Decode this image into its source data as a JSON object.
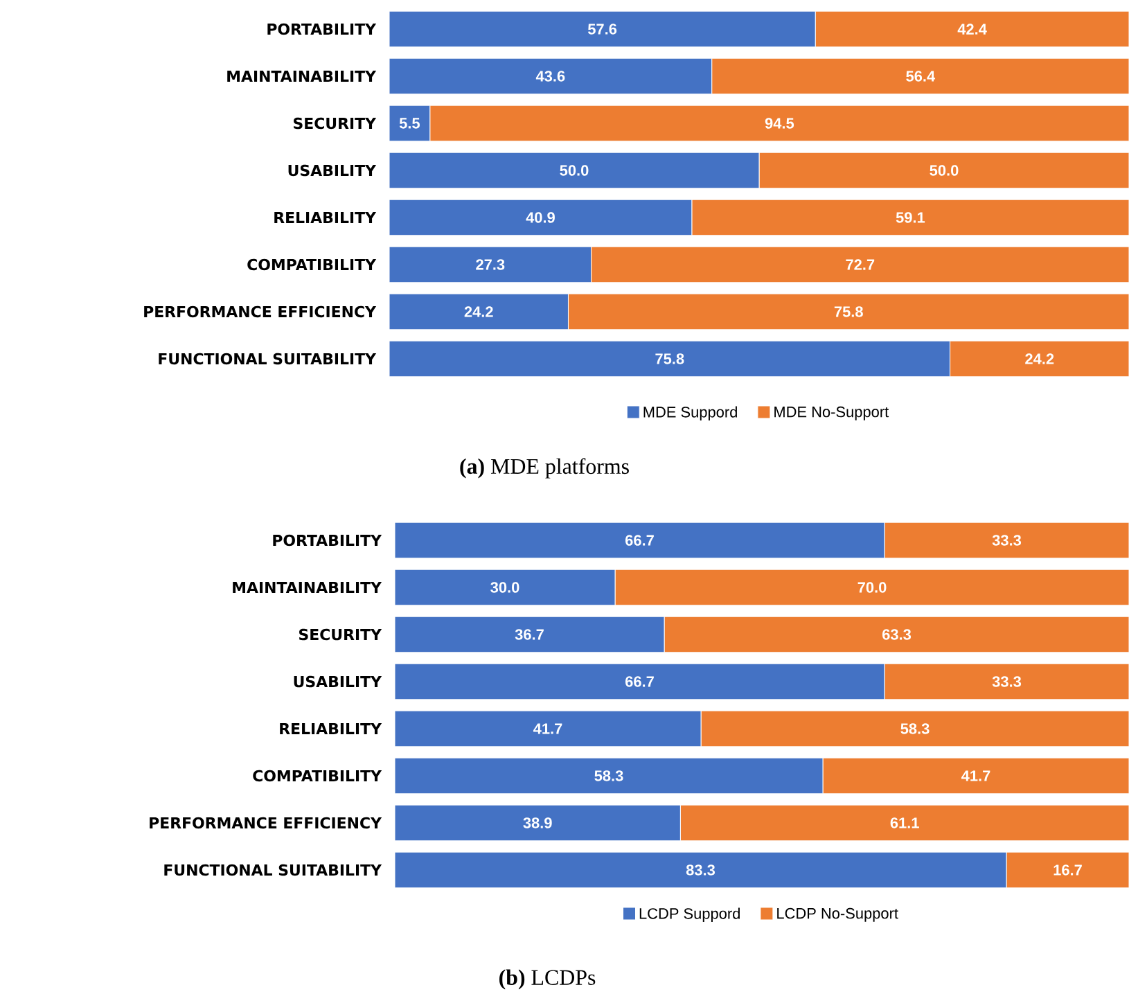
{
  "chart_data": [
    {
      "type": "bar",
      "orientation": "horizontal",
      "stacked": true,
      "title": "**(a)** MDE platforms",
      "categories": [
        "PORTABILITY",
        "MAINTAINABILITY",
        "SECURITY",
        "USABILITY",
        "RELIABILITY",
        "COMPATIBILITY",
        "PERFORMANCE EFFICIENCY",
        "FUNCTIONAL SUITABILITY"
      ],
      "series": [
        {
          "name": "MDE Suppord",
          "color": "#4472c4",
          "values": [
            57.6,
            43.6,
            5.5,
            50.0,
            40.9,
            27.3,
            24.2,
            75.8
          ],
          "value_labels": [
            "57.6",
            "43.6",
            "5.5",
            "50.0",
            "40.9",
            "27.3",
            "24.2",
            "75.8"
          ]
        },
        {
          "name": "MDE No-Support",
          "color": "#ed7d31",
          "values": [
            42.4,
            56.4,
            94.5,
            50.0,
            59.1,
            72.7,
            75.8,
            24.2
          ],
          "value_labels": [
            "42.4",
            "56.4",
            "94.5",
            "50.0",
            "59.1",
            "72.7",
            "75.8",
            "24.2"
          ]
        }
      ],
      "tick_labels": "y",
      "legend": "bottom"
    },
    {
      "type": "bar",
      "orientation": "horizontal",
      "stacked": true,
      "title": "**(b)** LCDPs",
      "categories": [
        "PORTABILITY",
        "MAINTAINABILITY",
        "SECURITY",
        "USABILITY",
        "RELIABILITY",
        "COMPATIBILITY",
        "PERFORMANCE EFFICIENCY",
        "FUNCTIONAL SUITABILITY"
      ],
      "series": [
        {
          "name": "LCDP Suppord",
          "color": "#4472c4",
          "values": [
            66.7,
            30.0,
            36.7,
            66.7,
            41.7,
            58.3,
            38.9,
            83.3
          ],
          "value_labels": [
            "66.7",
            "30.0",
            "36.7",
            "66.7",
            "41.7",
            "58.3",
            "38.9",
            "83.3"
          ]
        },
        {
          "name": "LCDP No-Support",
          "color": "#ed7d31",
          "values": [
            33.3,
            70.0,
            63.3,
            33.3,
            58.3,
            41.7,
            61.1,
            16.7
          ],
          "value_labels": [
            "33.3",
            "70.0",
            "63.3",
            "33.3",
            "58.3",
            "41.7",
            "61.1",
            "16.7"
          ]
        }
      ],
      "tick_labels": "y",
      "legend": "bottom"
    }
  ]
}
